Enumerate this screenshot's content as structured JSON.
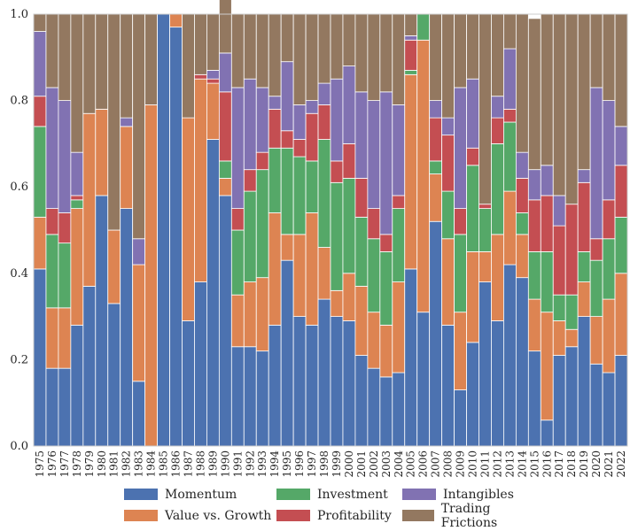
{
  "chart_data": {
    "type": "bar",
    "stacked": true,
    "ylim": [
      0,
      1.0
    ],
    "yticks": [
      "0.0",
      "0.2",
      "0.4",
      "0.6",
      "0.8",
      "1.0"
    ],
    "grid": true,
    "legend_position": "bottom-center",
    "categories": [
      "1975",
      "1976",
      "1977",
      "1978",
      "1979",
      "1980",
      "1981",
      "1982",
      "1983",
      "1984",
      "1985",
      "1986",
      "1987",
      "1988",
      "1989",
      "1990",
      "1991",
      "1992",
      "1993",
      "1994",
      "1995",
      "1996",
      "1997",
      "1998",
      "1999",
      "2000",
      "2001",
      "2002",
      "2003",
      "2004",
      "2005",
      "2006",
      "2007",
      "2008",
      "2009",
      "2010",
      "2011",
      "2012",
      "2013",
      "2014",
      "2015",
      "2016",
      "2017",
      "2018",
      "2019",
      "2020",
      "2021",
      "2022"
    ],
    "series": [
      {
        "name": "Momentum",
        "color": "#4c72b0",
        "values": [
          0.41,
          0.18,
          0.18,
          0.28,
          0.37,
          0.58,
          0.33,
          0.55,
          0.15,
          0.0,
          1.0,
          0.97,
          0.29,
          0.38,
          0.71,
          0.58,
          0.23,
          0.23,
          0.22,
          0.28,
          0.43,
          0.3,
          0.28,
          0.34,
          0.3,
          0.29,
          0.21,
          0.18,
          0.16,
          0.17,
          0.41,
          0.31,
          0.52,
          0.28,
          0.13,
          0.24,
          0.38,
          0.29,
          0.42,
          0.39,
          0.22,
          0.06,
          0.21,
          0.23,
          0.3,
          0.19,
          0.17,
          0.21
        ]
      },
      {
        "name": "Value vs. Growth",
        "color": "#dd8452",
        "values": [
          0.12,
          0.14,
          0.14,
          0.27,
          0.4,
          0.2,
          0.17,
          0.19,
          0.27,
          0.79,
          0.0,
          0.03,
          0.47,
          0.47,
          0.13,
          0.04,
          0.12,
          0.15,
          0.17,
          0.26,
          0.06,
          0.19,
          0.26,
          0.12,
          0.06,
          0.11,
          0.16,
          0.13,
          0.12,
          0.21,
          0.45,
          0.63,
          0.11,
          0.2,
          0.18,
          0.21,
          0.07,
          0.2,
          0.17,
          0.1,
          0.12,
          0.25,
          0.08,
          0.04,
          0.08,
          0.11,
          0.17,
          0.19
        ]
      },
      {
        "name": "Investment",
        "color": "#55a868",
        "values": [
          0.21,
          0.17,
          0.15,
          0.02,
          0.0,
          0.0,
          0.0,
          0.0,
          0.0,
          0.0,
          0.0,
          0.0,
          0.0,
          0.0,
          0.0,
          0.04,
          0.15,
          0.21,
          0.25,
          0.15,
          0.2,
          0.18,
          0.12,
          0.25,
          0.25,
          0.22,
          0.16,
          0.17,
          0.17,
          0.17,
          0.01,
          0.06,
          0.03,
          0.11,
          0.18,
          0.2,
          0.1,
          0.21,
          0.16,
          0.05,
          0.11,
          0.14,
          0.06,
          0.08,
          0.07,
          0.13,
          0.14,
          0.13
        ]
      },
      {
        "name": "Profitability",
        "color": "#c44e52",
        "values": [
          0.07,
          0.06,
          0.07,
          0.01,
          0.0,
          0.0,
          0.0,
          0.0,
          0.0,
          0.0,
          0.0,
          0.0,
          0.0,
          0.01,
          0.01,
          0.16,
          0.05,
          0.05,
          0.04,
          0.09,
          0.04,
          0.04,
          0.11,
          0.08,
          0.05,
          0.08,
          0.09,
          0.07,
          0.04,
          0.03,
          0.07,
          0.0,
          0.1,
          0.13,
          0.06,
          0.04,
          0.01,
          0.06,
          0.03,
          0.08,
          0.12,
          0.13,
          0.16,
          0.21,
          0.16,
          0.05,
          0.09,
          0.12
        ]
      },
      {
        "name": "Intangibles",
        "color": "#8172b2",
        "values": [
          0.15,
          0.28,
          0.26,
          0.1,
          0.0,
          0.0,
          0.0,
          0.02,
          0.06,
          0.0,
          0.0,
          0.0,
          0.0,
          0.0,
          0.02,
          0.09,
          0.28,
          0.21,
          0.15,
          0.03,
          0.16,
          0.08,
          0.03,
          0.05,
          0.19,
          0.18,
          0.2,
          0.25,
          0.33,
          0.21,
          0.01,
          0.0,
          0.04,
          0.04,
          0.28,
          0.16,
          0.0,
          0.05,
          0.14,
          0.06,
          0.07,
          0.07,
          0.07,
          0.0,
          0.03,
          0.35,
          0.23,
          0.09
        ]
      },
      {
        "name": "Trading Frictions",
        "color": "#937860",
        "values": [
          0.04,
          0.17,
          0.2,
          0.32,
          0.23,
          0.22,
          0.5,
          0.24,
          0.52,
          0.21,
          0.0,
          0.0,
          0.24,
          0.14,
          0.13,
          0.13,
          0.17,
          0.15,
          0.17,
          0.19,
          0.11,
          0.21,
          0.2,
          0.16,
          0.15,
          0.12,
          0.18,
          0.2,
          0.18,
          0.21,
          0.05,
          0.0,
          0.2,
          0.24,
          0.17,
          0.15,
          0.44,
          0.19,
          0.08,
          0.32,
          0.35,
          0.35,
          0.42,
          0.44,
          0.36,
          0.17,
          0.2,
          0.26
        ]
      }
    ]
  }
}
